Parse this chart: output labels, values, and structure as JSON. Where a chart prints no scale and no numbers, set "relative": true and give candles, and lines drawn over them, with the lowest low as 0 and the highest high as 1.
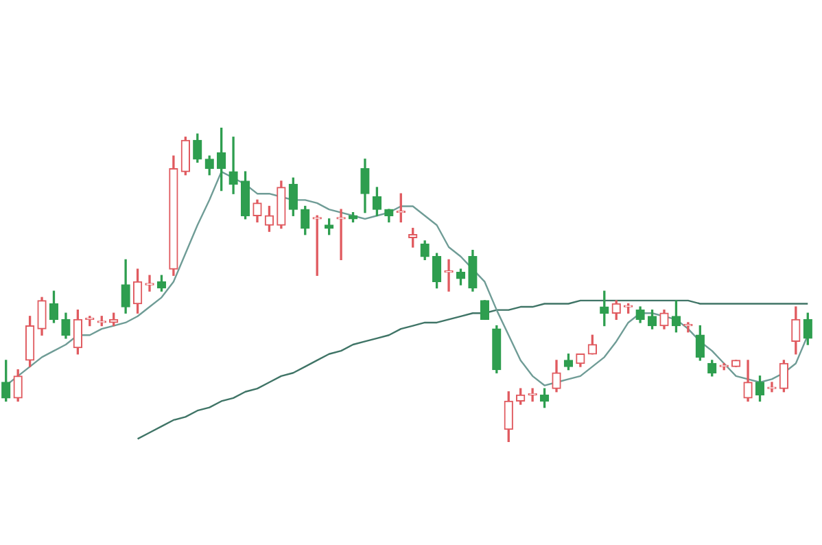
{
  "chart_data": {
    "type": "candlestick",
    "relative": true,
    "categories": [
      null,
      null,
      null,
      null,
      null,
      null,
      null,
      null,
      null,
      null,
      null,
      null,
      null,
      null,
      null,
      null,
      null,
      null,
      null,
      null,
      null,
      null,
      null,
      null,
      null,
      null,
      null,
      null,
      null,
      null,
      null,
      null,
      null,
      null,
      null,
      null,
      null,
      null,
      null,
      null,
      null,
      null,
      null,
      null,
      null,
      null,
      null,
      null,
      null,
      null,
      null,
      null,
      null,
      null,
      null,
      null,
      null,
      null,
      null,
      null,
      null,
      null,
      null,
      null,
      null,
      null,
      null,
      null
    ],
    "ohlc": [
      [
        0.19,
        0.26,
        0.13,
        0.14
      ],
      [
        0.14,
        0.23,
        0.13,
        0.21
      ],
      [
        0.26,
        0.4,
        0.24,
        0.37
      ],
      [
        0.36,
        0.46,
        0.34,
        0.45
      ],
      [
        0.44,
        0.48,
        0.38,
        0.39
      ],
      [
        0.39,
        0.41,
        0.33,
        0.34
      ],
      [
        0.3,
        0.42,
        0.28,
        0.39
      ],
      [
        0.39,
        0.4,
        0.37,
        0.39
      ],
      [
        0.38,
        0.4,
        0.37,
        0.38
      ],
      [
        0.38,
        0.41,
        0.37,
        0.39
      ],
      [
        0.5,
        0.58,
        0.41,
        0.43
      ],
      [
        0.44,
        0.55,
        0.41,
        0.51
      ],
      [
        0.5,
        0.53,
        0.48,
        0.5
      ],
      [
        0.51,
        0.53,
        0.48,
        0.49
      ],
      [
        0.55,
        0.91,
        0.53,
        0.87
      ],
      [
        0.86,
        0.97,
        0.85,
        0.96
      ],
      [
        0.96,
        0.98,
        0.89,
        0.9
      ],
      [
        0.9,
        0.91,
        0.85,
        0.87
      ],
      [
        0.92,
        1,
        0.8,
        0.87
      ],
      [
        0.86,
        0.97,
        0.79,
        0.82
      ],
      [
        0.83,
        0.86,
        0.71,
        0.72
      ],
      [
        0.72,
        0.77,
        0.7,
        0.76
      ],
      [
        0.69,
        0.75,
        0.67,
        0.72
      ],
      [
        0.69,
        0.83,
        0.68,
        0.81
      ],
      [
        0.82,
        0.84,
        0.72,
        0.74
      ],
      [
        0.74,
        0.75,
        0.66,
        0.68
      ],
      [
        0.71,
        0.72,
        0.53,
        0.71
      ],
      [
        0.69,
        0.71,
        0.66,
        0.68
      ],
      [
        0.71,
        0.74,
        0.58,
        0.71
      ],
      [
        0.72,
        0.73,
        0.7,
        0.71
      ],
      [
        0.87,
        0.9,
        0.73,
        0.79
      ],
      [
        0.78,
        0.81,
        0.72,
        0.74
      ],
      [
        0.74,
        0.74,
        0.7,
        0.72
      ],
      [
        0.73,
        0.79,
        0.7,
        0.73
      ],
      [
        0.65,
        0.68,
        0.62,
        0.66
      ],
      [
        0.63,
        0.64,
        0.58,
        0.59
      ],
      [
        0.59,
        0.6,
        0.49,
        0.51
      ],
      [
        0.54,
        0.58,
        0.48,
        0.54
      ],
      [
        0.54,
        0.55,
        0.5,
        0.52
      ],
      [
        0.59,
        0.61,
        0.48,
        0.49
      ],
      [
        0.45,
        0.45,
        0.39,
        0.39
      ],
      [
        0.36,
        0.37,
        0.22,
        0.23
      ],
      [
        0.04,
        0.16,
        0,
        0.13
      ],
      [
        0.13,
        0.17,
        0.12,
        0.15
      ],
      [
        0.15,
        0.17,
        0.13,
        0.15
      ],
      [
        0.15,
        0.17,
        0.11,
        0.13
      ],
      [
        0.17,
        0.26,
        0.16,
        0.22
      ],
      [
        0.26,
        0.28,
        0.23,
        0.24
      ],
      [
        0.25,
        0.28,
        0.24,
        0.28
      ],
      [
        0.28,
        0.34,
        0.28,
        0.31
      ],
      [
        0.43,
        0.48,
        0.37,
        0.41
      ],
      [
        0.41,
        0.45,
        0.39,
        0.44
      ],
      [
        0.43,
        0.44,
        0.41,
        0.43
      ],
      [
        0.42,
        0.43,
        0.38,
        0.39
      ],
      [
        0.4,
        0.42,
        0.36,
        0.37
      ],
      [
        0.37,
        0.42,
        0.36,
        0.41
      ],
      [
        0.4,
        0.45,
        0.35,
        0.37
      ],
      [
        0.37,
        0.38,
        0.35,
        0.37
      ],
      [
        0.34,
        0.37,
        0.26,
        0.27
      ],
      [
        0.25,
        0.26,
        0.21,
        0.22
      ],
      [
        0.24,
        0.25,
        0.23,
        0.24
      ],
      [
        0.24,
        0.26,
        0.24,
        0.26
      ],
      [
        0.14,
        0.26,
        0.13,
        0.19
      ],
      [
        0.19,
        0.21,
        0.13,
        0.15
      ],
      [
        0.17,
        0.19,
        0.16,
        0.17
      ],
      [
        0.17,
        0.26,
        0.16,
        0.25
      ],
      [
        0.32,
        0.43,
        0.28,
        0.39
      ],
      [
        0.39,
        0.41,
        0.31,
        0.33
      ]
    ],
    "series": [
      {
        "type": "line",
        "color": "#6f9c96",
        "values": [
          0.18,
          0.21,
          0.24,
          0.27,
          0.29,
          0.31,
          0.34,
          0.34,
          0.36,
          0.37,
          0.38,
          0.4,
          0.43,
          0.46,
          0.51,
          0.6,
          0.69,
          0.77,
          0.86,
          0.84,
          0.82,
          0.79,
          0.79,
          0.78,
          0.77,
          0.77,
          0.76,
          0.74,
          0.73,
          0.72,
          0.71,
          0.72,
          0.73,
          0.75,
          0.75,
          0.72,
          0.69,
          0.62,
          0.59,
          0.55,
          0.51,
          0.42,
          0.34,
          0.26,
          0.21,
          0.18,
          0.19,
          0.2,
          0.21,
          0.24,
          0.27,
          0.32,
          0.38,
          0.41,
          0.41,
          0.4,
          0.39,
          0.36,
          0.32,
          0.29,
          0.25,
          0.21,
          0.2,
          0.19,
          0.2,
          0.22,
          0.25,
          0.34
        ]
      },
      {
        "type": "line",
        "color": "#3f7466",
        "values": [
          null,
          null,
          null,
          null,
          null,
          null,
          null,
          null,
          null,
          null,
          null,
          0.01,
          0.03,
          0.05,
          0.07,
          0.08,
          0.1,
          0.11,
          0.13,
          0.14,
          0.16,
          0.17,
          0.19,
          0.21,
          0.22,
          0.24,
          0.26,
          0.28,
          0.29,
          0.31,
          0.32,
          0.33,
          0.34,
          0.36,
          0.37,
          0.38,
          0.38,
          0.39,
          0.4,
          0.41,
          0.41,
          0.42,
          0.42,
          0.43,
          0.43,
          0.44,
          0.44,
          0.44,
          0.45,
          0.45,
          0.45,
          0.45,
          0.45,
          0.45,
          0.45,
          0.45,
          0.45,
          0.45,
          0.44,
          0.44,
          0.44,
          0.44,
          0.44,
          0.44,
          0.44,
          0.44,
          0.44,
          0.44
        ]
      }
    ]
  }
}
